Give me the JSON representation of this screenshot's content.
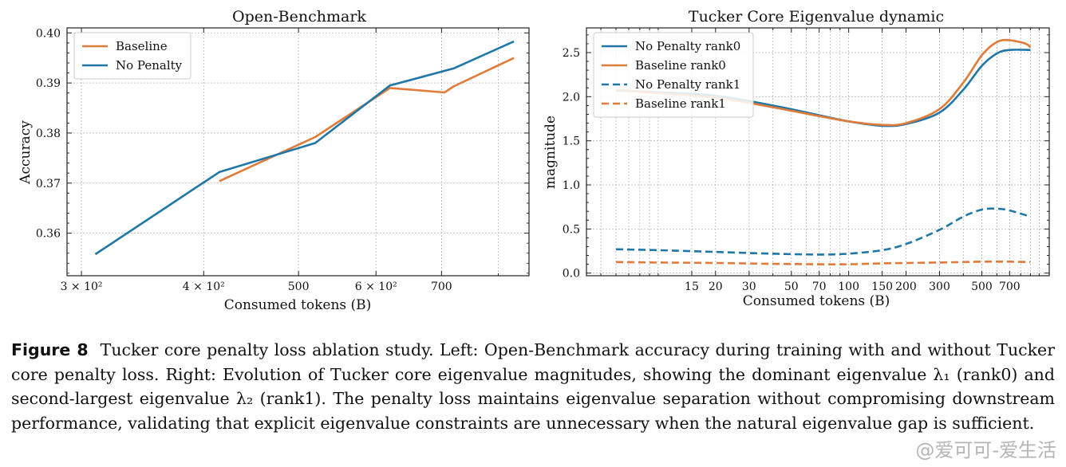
{
  "chart_data": [
    {
      "type": "line",
      "title": "Open-Benchmark",
      "xlabel": "Consumed tokens (B)",
      "ylabel": "Accuracy",
      "xscale": "log",
      "xlim": [
        290,
        860
      ],
      "ylim": [
        0.3515,
        0.401
      ],
      "x_ticks": [
        {
          "value": 300,
          "label": "3 × 10²"
        },
        {
          "value": 400,
          "label": "4 × 10²"
        },
        {
          "value": 500,
          "label": "500"
        },
        {
          "value": 600,
          "label": "6 × 10²"
        },
        {
          "value": 700,
          "label": "700"
        }
      ],
      "y_ticks": [
        0.36,
        0.37,
        0.38,
        0.39,
        0.4
      ],
      "y_tick_labels": [
        "0.36",
        "0.37",
        "0.38",
        "0.39",
        "0.40"
      ],
      "grid": true,
      "legend_position": "top-left",
      "series": [
        {
          "name": "Baseline",
          "color": "#e07b39",
          "dash": "solid",
          "x": [
            415,
            520,
            620,
            705,
            720,
            830
          ],
          "y": [
            0.3704,
            0.3792,
            0.389,
            0.3881,
            0.3893,
            0.395
          ]
        },
        {
          "name": "No Penalty",
          "color": "#1f77a8",
          "dash": "solid",
          "x": [
            310,
            415,
            520,
            620,
            720,
            830
          ],
          "y": [
            0.3558,
            0.3722,
            0.378,
            0.3895,
            0.3929,
            0.3983
          ]
        }
      ]
    },
    {
      "type": "line",
      "title": "Tucker Core Eigenvalue dynamic",
      "xlabel": "Consumed tokens (B)",
      "ylabel": "magnitude",
      "xscale": "log",
      "xlim": [
        4.2,
        1130
      ],
      "ylim": [
        -0.03,
        2.78
      ],
      "x_ticks": [
        {
          "value": 15,
          "label": "15"
        },
        {
          "value": 20,
          "label": "20"
        },
        {
          "value": 30,
          "label": "30"
        },
        {
          "value": 50,
          "label": "50"
        },
        {
          "value": 70,
          "label": "70"
        },
        {
          "value": 100,
          "label": "100"
        },
        {
          "value": 150,
          "label": "150"
        },
        {
          "value": 200,
          "label": "200"
        },
        {
          "value": 300,
          "label": "300"
        },
        {
          "value": 500,
          "label": "500"
        },
        {
          "value": 700,
          "label": "700"
        }
      ],
      "y_ticks": [
        0.0,
        0.5,
        1.0,
        1.5,
        2.0,
        2.5
      ],
      "y_tick_labels": [
        "0.0",
        "0.5",
        "1.0",
        "1.5",
        "2.0",
        "2.5"
      ],
      "grid": true,
      "legend_position": "top-left",
      "series": [
        {
          "name": "No Penalty rank0",
          "color": "#1f77a8",
          "dash": "solid",
          "x": [
            6,
            10,
            20,
            40,
            70,
            100,
            150,
            200,
            300,
            400,
            500,
            600,
            700,
            900
          ],
          "y": [
            2.07,
            2.05,
            2.01,
            1.9,
            1.79,
            1.72,
            1.67,
            1.69,
            1.82,
            2.08,
            2.35,
            2.49,
            2.53,
            2.53
          ]
        },
        {
          "name": "Baseline rank0",
          "color": "#e07b39",
          "dash": "solid",
          "x": [
            6,
            10,
            20,
            40,
            70,
            100,
            150,
            200,
            300,
            400,
            500,
            600,
            700,
            850,
            900
          ],
          "y": [
            2.08,
            2.04,
            1.99,
            1.88,
            1.78,
            1.72,
            1.68,
            1.7,
            1.86,
            2.16,
            2.47,
            2.62,
            2.64,
            2.6,
            2.56
          ]
        },
        {
          "name": "No Penalty rank1",
          "color": "#1f77a8",
          "dash": "dashed",
          "x": [
            6,
            10,
            20,
            40,
            70,
            100,
            150,
            200,
            300,
            400,
            500,
            600,
            700,
            900
          ],
          "y": [
            0.27,
            0.26,
            0.24,
            0.22,
            0.21,
            0.22,
            0.26,
            0.33,
            0.49,
            0.64,
            0.72,
            0.73,
            0.71,
            0.64
          ]
        },
        {
          "name": "Baseline rank1",
          "color": "#e07b39",
          "dash": "dashed",
          "x": [
            6,
            10,
            20,
            40,
            70,
            100,
            150,
            200,
            300,
            400,
            500,
            600,
            700,
            900
          ],
          "y": [
            0.125,
            0.12,
            0.115,
            0.105,
            0.1,
            0.1,
            0.11,
            0.115,
            0.12,
            0.125,
            0.13,
            0.13,
            0.13,
            0.125
          ]
        }
      ]
    }
  ],
  "caption": {
    "label": "Figure 8",
    "text": "Tucker core penalty loss ablation study. Left: Open-Benchmark accuracy during training with and without Tucker core penalty loss. Right: Evolution of Tucker core eigenvalue magnitudes, showing the dominant eigenvalue λ₁ (rank0) and second-largest eigenvalue λ₂ (rank1). The penalty loss maintains eigenvalue separation without compromising downstream performance, validating that explicit eigenvalue constraints are unnecessary when the natural eigenvalue gap is sufficient."
  },
  "watermark": "@爱可可-爱生活"
}
